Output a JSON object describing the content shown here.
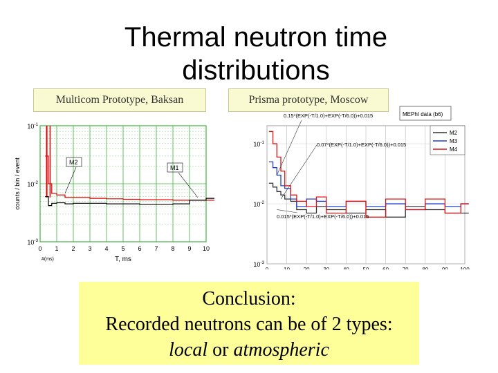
{
  "slide": {
    "title_line1": "Thermal neutron time",
    "title_line2": "distributions",
    "left_caption": "Multicom Prototype, Baksan",
    "right_caption": "Prisma prototype, Moscow",
    "conclusion_heading": "Conclusion:",
    "conclusion_line2": "Recorded neutrons can be of 2 types:",
    "conclusion_local": "local",
    "conclusion_or": " or ",
    "conclusion_atmospheric": "atmospheric"
  },
  "chart_data": [
    {
      "type": "line",
      "xlabel": "T, ms",
      "ylabel": "counts / bin / event",
      "xlim": [
        0,
        10
      ],
      "ylim_exponents": [
        -3,
        -1
      ],
      "scale": "log",
      "x_ticks": [
        "0",
        "1",
        "2",
        "3",
        "4",
        "5",
        "6",
        "7",
        "8",
        "9",
        "10"
      ],
      "y_ticks": [
        "10-1",
        "10-2",
        "10-3"
      ],
      "extra_label": "#(ms)",
      "grid": true,
      "annotations": [
        "M2",
        "M1"
      ],
      "colors": {
        "M1": "#000000",
        "M2": "#e00000",
        "grid": "#3cb43c"
      },
      "series": [
        {
          "name": "M2",
          "x": [
            0.3,
            0.5,
            0.7,
            1,
            1.5,
            2,
            3,
            4,
            5,
            6,
            7,
            8,
            9,
            10
          ],
          "y": [
            0.03,
            0.01,
            0.0068,
            0.0064,
            0.0058,
            0.0058,
            0.0056,
            0.0055,
            0.0054,
            0.0053,
            0.0053,
            0.0052,
            0.0052,
            0.0052
          ]
        },
        {
          "name": "M1",
          "x": [
            0.3,
            0.5,
            0.7,
            1,
            1.5,
            2,
            3,
            4,
            5,
            6,
            7,
            8,
            9,
            10
          ],
          "y": [
            0.006,
            0.0042,
            0.0046,
            0.0047,
            0.0045,
            0.0046,
            0.0046,
            0.0045,
            0.0045,
            0.0044,
            0.0044,
            0.0045,
            0.0052,
            0.0056
          ]
        }
      ]
    },
    {
      "type": "line",
      "xlim": [
        0,
        100
      ],
      "ylim_exponents": [
        -3,
        -1
      ],
      "scale": "log",
      "x_ticks": [
        "0",
        "10",
        "20",
        "30",
        "40",
        "50",
        "60",
        "70",
        "80",
        "90",
        "100"
      ],
      "y_ticks": [
        "10-1",
        "10-2",
        "10-3"
      ],
      "legend_title": "MEPhI data (b6)",
      "legend_position": "top-right",
      "annotations": [
        "0.15*(EXP(-T/1.0)+EXP(-T/6.0))+0.015",
        "0.07*(EXP(-T/1.0)+EXP(-T/6.0))+0.015",
        "0.015*(EXP(-T/1.0)+EXP(-T/6.0))+0.015"
      ],
      "colors": {
        "M2": "#303030",
        "M3": "#1e3cc8",
        "M4": "#e01010"
      },
      "series": [
        {
          "name": "M2",
          "x": [
            1,
            3,
            5,
            7,
            9,
            12,
            15,
            20,
            25,
            30,
            40,
            50,
            60,
            70,
            80,
            90,
            98
          ],
          "y": [
            0.022,
            0.019,
            0.016,
            0.014,
            0.012,
            0.011,
            0.008,
            0.007,
            0.009,
            0.008,
            0.007,
            0.008,
            0.006,
            0.009,
            0.008,
            0.007,
            0.007
          ]
        },
        {
          "name": "M3",
          "x": [
            1,
            3,
            5,
            7,
            9,
            12,
            15,
            20,
            25,
            30,
            40,
            50,
            60,
            70,
            80,
            90,
            98
          ],
          "y": [
            0.05,
            0.04,
            0.03,
            0.02,
            0.018,
            0.012,
            0.009,
            0.012,
            0.011,
            0.009,
            0.011,
            0.009,
            0.01,
            0.008,
            0.01,
            0.009,
            0.01
          ]
        },
        {
          "name": "M4",
          "x": [
            1,
            3,
            5,
            7,
            9,
            12,
            15,
            20,
            25,
            30,
            40,
            50,
            60,
            70,
            80,
            90,
            98
          ],
          "y": [
            0.16,
            0.1,
            0.06,
            0.035,
            0.02,
            0.014,
            0.011,
            0.009,
            0.013,
            0.007,
            0.011,
            0.006,
            0.012,
            0.008,
            0.012,
            0.007,
            0.01
          ]
        }
      ]
    }
  ]
}
